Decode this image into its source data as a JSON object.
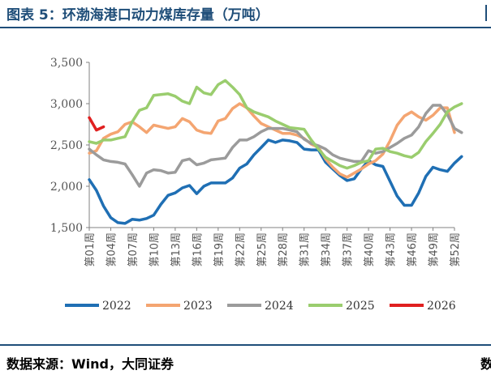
{
  "header": {
    "title": "图表 5：环渤海港口动力煤库存量（万吨）"
  },
  "footer": {
    "source": "数据来源：Wind，大同证券",
    "right_fragment": "数"
  },
  "chart_data": {
    "type": "line",
    "title": "环渤海港口动力煤库存量（万吨）",
    "unit": "万吨",
    "ylim": [
      1500,
      3500
    ],
    "yticks": [
      1500,
      2000,
      2500,
      3000,
      3500
    ],
    "ytick_labels": [
      "1,500",
      "2,000",
      "2,500",
      "3,000",
      "3,500"
    ],
    "x_tick_labels": [
      "第01周",
      "第04周",
      "第07周",
      "第10周",
      "第13周",
      "第16周",
      "第19周",
      "第22周",
      "第25周",
      "第28周",
      "第31周",
      "第34周",
      "第37周",
      "第40周",
      "第43周",
      "第46周",
      "第49周",
      "第52周"
    ],
    "x_tick_weeks": [
      1,
      4,
      7,
      10,
      13,
      16,
      19,
      22,
      25,
      28,
      31,
      34,
      37,
      40,
      43,
      46,
      49,
      52
    ],
    "x_range": [
      1,
      52
    ],
    "series": [
      {
        "name": "2022",
        "color": "#1f6fb4",
        "values": [
          2080,
          1950,
          1760,
          1620,
          1560,
          1550,
          1600,
          1590,
          1610,
          1650,
          1780,
          1890,
          1920,
          1980,
          2010,
          1910,
          2000,
          2040,
          2040,
          2040,
          2100,
          2220,
          2270,
          2380,
          2470,
          2560,
          2530,
          2560,
          2550,
          2530,
          2450,
          2440,
          2440,
          2290,
          2210,
          2130,
          2070,
          2090,
          2210,
          2310,
          2260,
          2240,
          2060,
          1880,
          1770,
          1770,
          1920,
          2120,
          2230,
          2200,
          2180,
          2280,
          2360
        ]
      },
      {
        "name": "2023",
        "color": "#f4a571",
        "values": [
          2400,
          2430,
          2580,
          2630,
          2660,
          2750,
          2780,
          2720,
          2650,
          2740,
          2720,
          2700,
          2720,
          2820,
          2780,
          2680,
          2650,
          2640,
          2790,
          2820,
          2940,
          3000,
          2950,
          2850,
          2760,
          2720,
          2680,
          2640,
          2640,
          2620,
          2580,
          2510,
          2470,
          2330,
          2230,
          2150,
          2110,
          2160,
          2210,
          2270,
          2310,
          2390,
          2550,
          2740,
          2850,
          2900,
          2840,
          2800,
          2860,
          2950,
          2950,
          2650
        ]
      },
      {
        "name": "2024",
        "color": "#9b9b9b",
        "values": [
          2450,
          2380,
          2320,
          2300,
          2290,
          2270,
          2140,
          2000,
          2160,
          2200,
          2190,
          2160,
          2170,
          2310,
          2330,
          2260,
          2280,
          2320,
          2330,
          2340,
          2470,
          2560,
          2560,
          2600,
          2660,
          2700,
          2700,
          2700,
          2680,
          2660,
          2570,
          2520,
          2490,
          2450,
          2380,
          2340,
          2320,
          2300,
          2300,
          2430,
          2400,
          2420,
          2470,
          2520,
          2580,
          2620,
          2720,
          2880,
          2980,
          2980,
          2870,
          2700,
          2650
        ]
      },
      {
        "name": "2025",
        "color": "#9acd6e",
        "values": [
          2540,
          2520,
          2560,
          2560,
          2580,
          2600,
          2780,
          2920,
          2950,
          3100,
          3110,
          3120,
          3090,
          3030,
          3000,
          3200,
          3130,
          3110,
          3230,
          3280,
          3200,
          3110,
          2950,
          2900,
          2870,
          2840,
          2790,
          2750,
          2710,
          2700,
          2690,
          2560,
          2450,
          2350,
          2300,
          2250,
          2220,
          2250,
          2290,
          2310,
          2450,
          2460,
          2420,
          2400,
          2370,
          2350,
          2410,
          2540,
          2640,
          2750,
          2900,
          2960,
          3000
        ]
      },
      {
        "name": "2026",
        "color": "#e02020",
        "values": [
          2830,
          2680,
          2720
        ]
      }
    ]
  }
}
